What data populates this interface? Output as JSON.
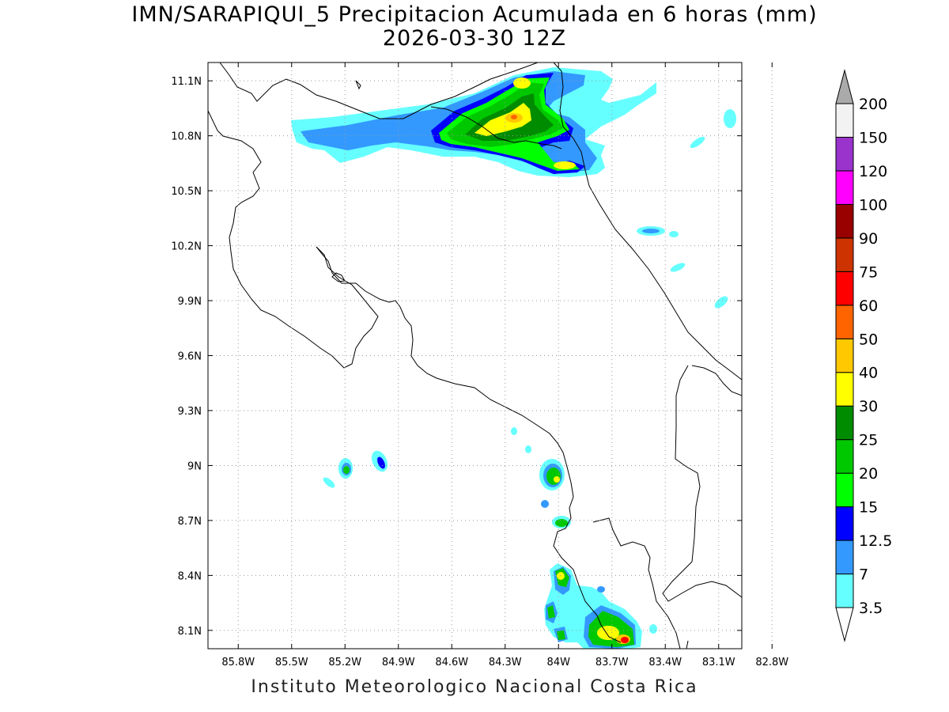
{
  "title": {
    "line1": "IMN/SARAPIQUI_5 Precipitacion Acumulada en 6 horas (mm)",
    "line2": "2026-03-30 12Z"
  },
  "footer": "Instituto Meteorologico Nacional Costa Rica",
  "map": {
    "lat_labels": [
      "11.1N",
      "10.8N",
      "10.5N",
      "10.2N",
      "9.9N",
      "9.6N",
      "9.3N",
      "9N",
      "8.7N",
      "8.4N",
      "8.1N"
    ],
    "lon_labels": [
      "85.8W",
      "85.5W",
      "85.2W",
      "84.9W",
      "84.6W",
      "84.3W",
      "84W",
      "83.7W",
      "83.4W",
      "83.1W",
      "82.8W"
    ],
    "lat_range": [
      8.0,
      11.2
    ],
    "lon_range": [
      -85.97,
      -82.97
    ]
  },
  "colorbar": {
    "labels": [
      "3.5",
      "7",
      "12.5",
      "15",
      "20",
      "25",
      "30",
      "40",
      "50",
      "60",
      "75",
      "90",
      "100",
      "120",
      "150",
      "200"
    ],
    "colors": [
      "#ffffff",
      "#66ffff",
      "#3399ff",
      "#0000ff",
      "#00ff00",
      "#00c800",
      "#008c00",
      "#ffff00",
      "#ffc800",
      "#ff6400",
      "#ff0000",
      "#cc3300",
      "#990000",
      "#ff00ff",
      "#9933cc",
      "#f2f2f2",
      "#aaaaaa"
    ]
  }
}
